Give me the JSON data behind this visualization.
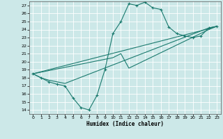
{
  "xlabel": "Humidex (Indice chaleur)",
  "xlim": [
    -0.5,
    23.5
  ],
  "ylim": [
    13.5,
    27.5
  ],
  "xticks": [
    0,
    1,
    2,
    3,
    4,
    5,
    6,
    7,
    8,
    9,
    10,
    11,
    12,
    13,
    14,
    15,
    16,
    17,
    18,
    19,
    20,
    21,
    22,
    23
  ],
  "yticks": [
    14,
    15,
    16,
    17,
    18,
    19,
    20,
    21,
    22,
    23,
    24,
    25,
    26,
    27
  ],
  "background_color": "#cce8e8",
  "grid_color": "#ffffff",
  "line_color": "#1a7a6e",
  "curve1_x": [
    0,
    1,
    2,
    3,
    4,
    5,
    6,
    7,
    8,
    9,
    10,
    11,
    12,
    13,
    14,
    15,
    16,
    17,
    18,
    19,
    20,
    21,
    22,
    23
  ],
  "curve1_y": [
    18.5,
    18.0,
    17.5,
    17.2,
    17.0,
    15.5,
    14.3,
    14.0,
    15.8,
    19.0,
    23.5,
    25.0,
    27.2,
    27.0,
    27.4,
    26.7,
    26.5,
    24.3,
    23.5,
    23.2,
    23.0,
    23.2,
    24.2,
    24.4
  ],
  "curve2_x": [
    0,
    1,
    2,
    3,
    4,
    22,
    23
  ],
  "curve2_y": [
    18.5,
    18.0,
    17.7,
    17.5,
    17.3,
    24.2,
    24.4
  ],
  "curve3_x": [
    0,
    10,
    11,
    12,
    22,
    23
  ],
  "curve3_y": [
    18.5,
    20.5,
    21.0,
    19.2,
    24.0,
    24.4
  ],
  "curve4_x": [
    0,
    22,
    23
  ],
  "curve4_y": [
    18.5,
    24.1,
    24.4
  ]
}
